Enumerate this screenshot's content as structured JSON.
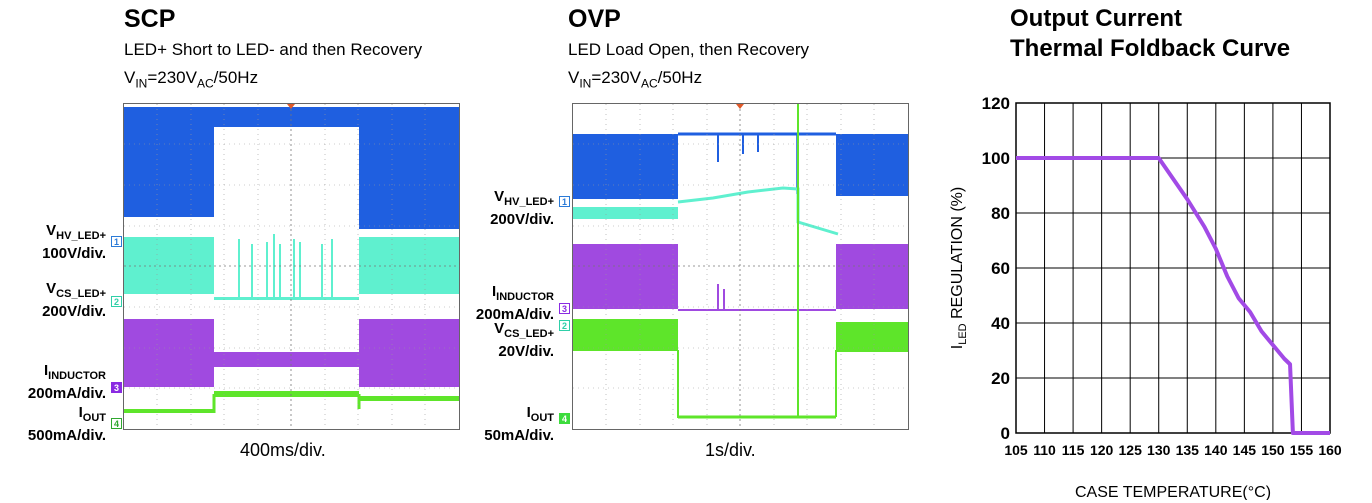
{
  "scp": {
    "title": "SCP",
    "subtitle": "LED+ Short to LED- and then Recovery",
    "vin_prefix": "V",
    "vin_sub": "IN",
    "vin_mid": "=230V",
    "vin_sub2": "AC",
    "vin_suffix": "/50Hz",
    "time_div": "400ms/div.",
    "channels": [
      {
        "name_main": "V",
        "name_sub": "HV_LED+",
        "scale": "100V/div.",
        "num": "1",
        "color": "#2b7bd8"
      },
      {
        "name_main": "V",
        "name_sub": "CS_LED+",
        "scale": "200V/div.",
        "num": "2",
        "color": "#4fe6c6"
      },
      {
        "name_main": "I",
        "name_sub": "INDUCTOR",
        "scale": "200mA/div.",
        "num": "3",
        "color": "#8a2be2"
      },
      {
        "name_main": "I",
        "name_sub": "OUT",
        "scale": "500mA/div.",
        "num": "4",
        "color": "#3ddc3d"
      }
    ]
  },
  "ovp": {
    "title": "OVP",
    "subtitle": "LED Load Open, then Recovery",
    "vin_prefix": "V",
    "vin_sub": "IN",
    "vin_mid": "=230V",
    "vin_sub2": "AC",
    "vin_suffix": "/50Hz",
    "time_div": "1s/div.",
    "channels": [
      {
        "name_main": "V",
        "name_sub": "HV_LED+",
        "scale": "200V/div.",
        "num": "1",
        "color": "#2b7bd8"
      },
      {
        "name_main": "I",
        "name_sub": "INDUCTOR",
        "scale": "200mA/div.",
        "num": "3",
        "color": "#8a2be2"
      },
      {
        "name_main": "V",
        "name_sub": "CS_LED+",
        "scale": "20V/div.",
        "num": "2",
        "color": "#4fe6c6"
      },
      {
        "name_main": "I",
        "name_sub": "OUT",
        "scale": "50mA/div.",
        "num": "4",
        "color": "#3ddc3d"
      }
    ]
  },
  "thermal": {
    "title_line1": "Output Current",
    "title_line2": "Thermal Foldback Curve"
  },
  "colors": {
    "blue": "#1f5fe0",
    "cyan": "#5ff0cf",
    "purple": "#a04ae0",
    "green": "#5ee52a",
    "curve": "#a24ae6"
  },
  "chart_data": {
    "type": "line",
    "title": "Output Current Thermal Foldback Curve",
    "xlabel": "CASE TEMPERATURE(°C)",
    "ylabel_main": "I",
    "ylabel_sub": "LED",
    "ylabel_rest": " REGULATION (%)",
    "xlim": [
      105,
      160
    ],
    "ylim": [
      0,
      120
    ],
    "xticks": [
      "105",
      "110",
      "115",
      "120",
      "125",
      "130",
      "135",
      "140",
      "145",
      "150",
      "155",
      "160"
    ],
    "yticks": [
      "0",
      "20",
      "40",
      "60",
      "80",
      "100",
      "120"
    ],
    "grid": true,
    "series": [
      {
        "x": [
          105,
          110,
          115,
          120,
          125,
          130,
          135,
          138,
          140,
          142,
          144,
          146,
          148,
          150,
          152,
          153,
          153.5,
          154,
          160
        ],
        "y": [
          100,
          100,
          100,
          100,
          100,
          100,
          85,
          75,
          67,
          57,
          49,
          44,
          37,
          32,
          27,
          25,
          0,
          0,
          0
        ]
      }
    ]
  }
}
